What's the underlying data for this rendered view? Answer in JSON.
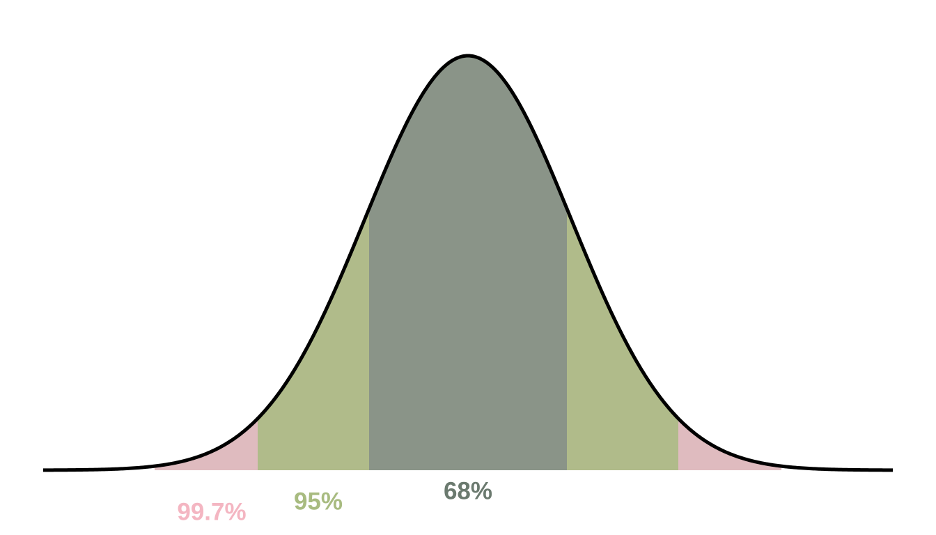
{
  "bands": [
    {
      "label": "99.7%",
      "fill": "#dfbbbf",
      "label_color": "#f4b6c2"
    },
    {
      "label": "95%",
      "fill": "#b0bb8a",
      "label_color": "#a8bb80"
    },
    {
      "label": "68%",
      "fill": "#8a9488",
      "label_color": "#6b7a6f"
    }
  ]
}
